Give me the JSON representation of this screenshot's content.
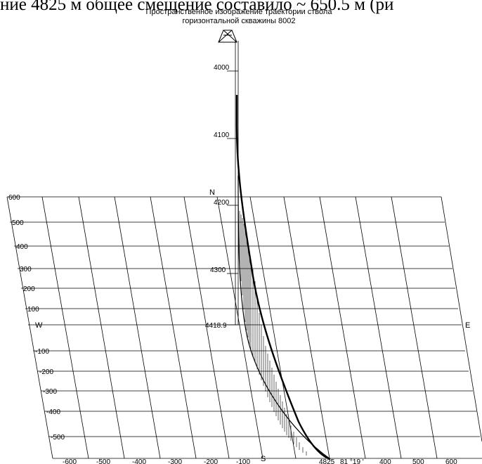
{
  "top_text": "ние 4825 м общее смещение составило ~ 650.5 м (ри",
  "title_line1": "Пространственное изображение траектории ствола",
  "title_line2": "горизонтальной скважины 8002",
  "depth_labels": [
    "4000",
    "4100",
    "4200",
    "4300",
    "4418.9"
  ],
  "ns_ticks": [
    "600",
    "500",
    "400",
    "300",
    "200",
    "100",
    "-100",
    "-200",
    "-300",
    "-400",
    "-500"
  ],
  "ew_ticks": [
    "-600",
    "-500",
    "-400",
    "-300",
    "-200",
    "-100",
    "400",
    "500",
    "600"
  ],
  "compass": {
    "north": "N",
    "south": "S",
    "west": "W",
    "east": "E"
  },
  "bottom_depth_label": "4825",
  "azimuth_label": "81 °19 '"
}
